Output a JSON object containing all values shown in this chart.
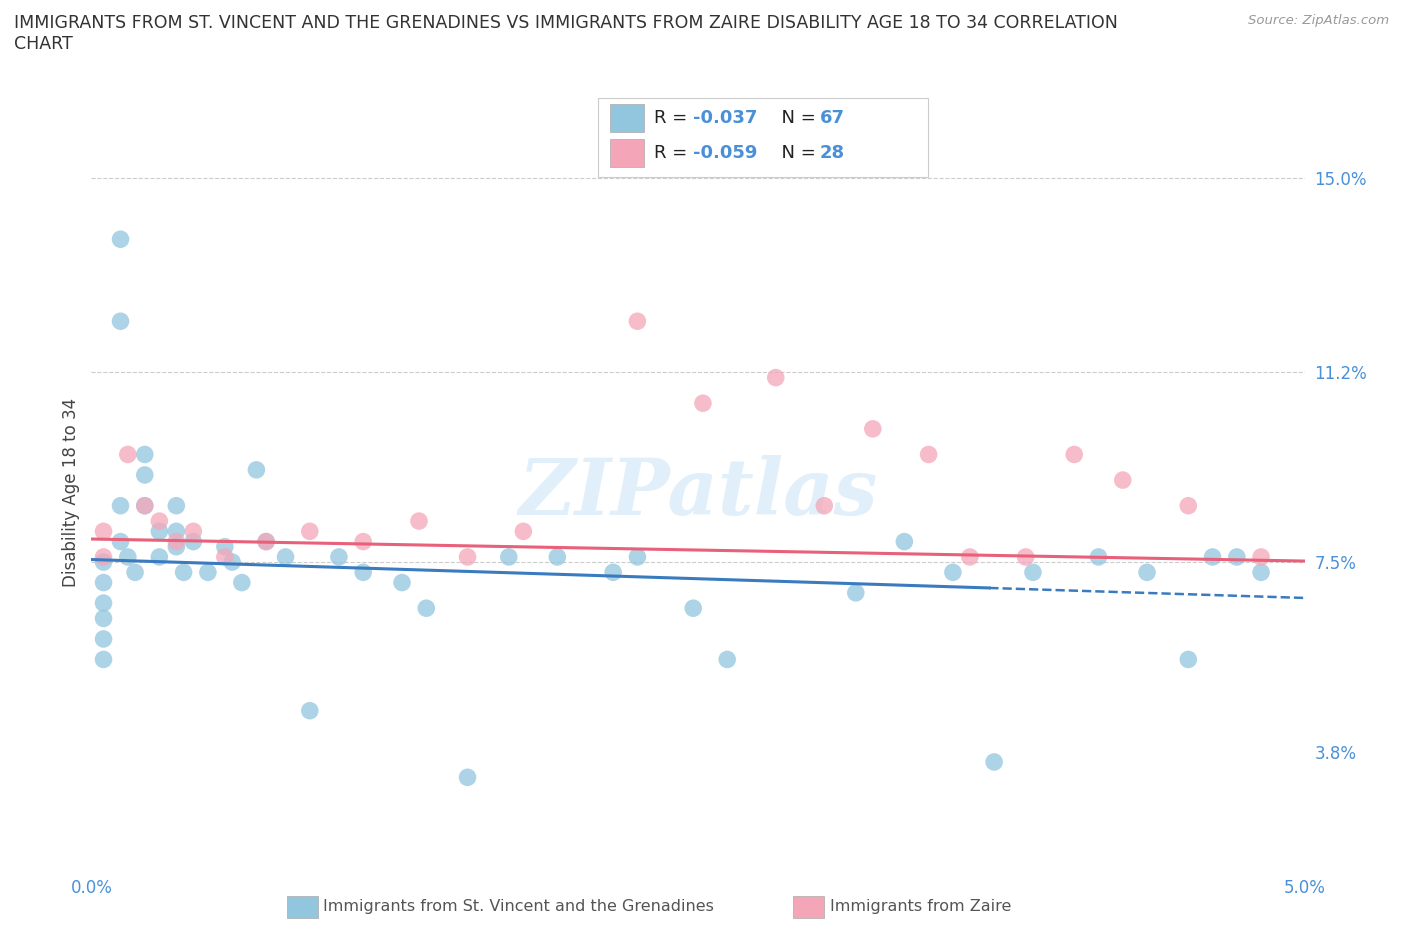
{
  "title_line1": "IMMIGRANTS FROM ST. VINCENT AND THE GRENADINES VS IMMIGRANTS FROM ZAIRE DISABILITY AGE 18 TO 34 CORRELATION",
  "title_line2": "CHART",
  "source": "Source: ZipAtlas.com",
  "ylabel": "Disability Age 18 to 34",
  "xmin": 0.0,
  "xmax": 5.0,
  "ymin": 1.5,
  "ymax": 16.2,
  "yticks": [
    3.8,
    7.5,
    11.2,
    15.0
  ],
  "ytick_labels": [
    "3.8%",
    "7.5%",
    "11.2%",
    "15.0%"
  ],
  "xtick_labels": [
    "0.0%",
    "",
    "",
    "",
    "",
    "5.0%"
  ],
  "legend_labels": [
    "Immigrants from St. Vincent and the Grenadines",
    "Immigrants from Zaire"
  ],
  "color_blue": "#92c5de",
  "color_pink": "#f4a6b8",
  "color_blue_line": "#3a7bbf",
  "color_pink_line": "#e8607a",
  "watermark": "ZIPatlas",
  "scatter_blue_x": [
    0.05,
    0.05,
    0.05,
    0.05,
    0.05,
    0.05,
    0.12,
    0.12,
    0.12,
    0.12,
    0.15,
    0.18,
    0.22,
    0.22,
    0.22,
    0.28,
    0.28,
    0.35,
    0.35,
    0.35,
    0.38,
    0.42,
    0.48,
    0.55,
    0.58,
    0.62,
    0.68,
    0.72,
    0.8,
    0.9,
    1.02,
    1.12,
    1.28,
    1.38,
    1.55,
    1.72,
    1.92,
    2.15,
    2.25,
    2.48,
    2.62,
    3.15,
    3.35,
    3.55,
    3.72,
    3.88,
    4.15,
    4.35,
    4.52,
    4.62,
    4.72,
    4.82
  ],
  "scatter_blue_y": [
    7.5,
    7.1,
    6.7,
    6.4,
    6.0,
    5.6,
    13.8,
    12.2,
    8.6,
    7.9,
    7.6,
    7.3,
    9.6,
    9.2,
    8.6,
    8.1,
    7.6,
    8.6,
    8.1,
    7.8,
    7.3,
    7.9,
    7.3,
    7.8,
    7.5,
    7.1,
    9.3,
    7.9,
    7.6,
    4.6,
    7.6,
    7.3,
    7.1,
    6.6,
    3.3,
    7.6,
    7.6,
    7.3,
    7.6,
    6.6,
    5.6,
    6.9,
    7.9,
    7.3,
    3.6,
    7.3,
    7.6,
    7.3,
    5.6,
    7.6,
    7.6,
    7.3
  ],
  "scatter_pink_x": [
    0.05,
    0.05,
    0.15,
    0.22,
    0.28,
    0.35,
    0.42,
    0.55,
    0.72,
    0.9,
    1.12,
    1.35,
    1.55,
    1.78,
    2.25,
    2.52,
    2.82,
    3.02,
    3.22,
    3.45,
    3.62,
    3.85,
    4.05,
    4.25,
    4.52,
    4.82
  ],
  "scatter_pink_y": [
    8.1,
    7.6,
    9.6,
    8.6,
    8.3,
    7.9,
    8.1,
    7.6,
    7.9,
    8.1,
    7.9,
    8.3,
    7.6,
    8.1,
    12.2,
    10.6,
    11.1,
    8.6,
    10.1,
    9.6,
    7.6,
    7.6,
    9.6,
    9.1,
    8.6,
    7.6
  ],
  "reg_blue_x0": 0.0,
  "reg_blue_x1": 5.0,
  "reg_blue_y0": 7.55,
  "reg_blue_y1": 6.8,
  "reg_pink_x0": 0.0,
  "reg_pink_x1": 5.0,
  "reg_pink_y0": 7.95,
  "reg_pink_y1": 7.52,
  "dash_start_x": 3.7,
  "dash_end_x": 5.0,
  "hlines": [
    7.5,
    11.2,
    15.0
  ],
  "background_color": "#ffffff"
}
